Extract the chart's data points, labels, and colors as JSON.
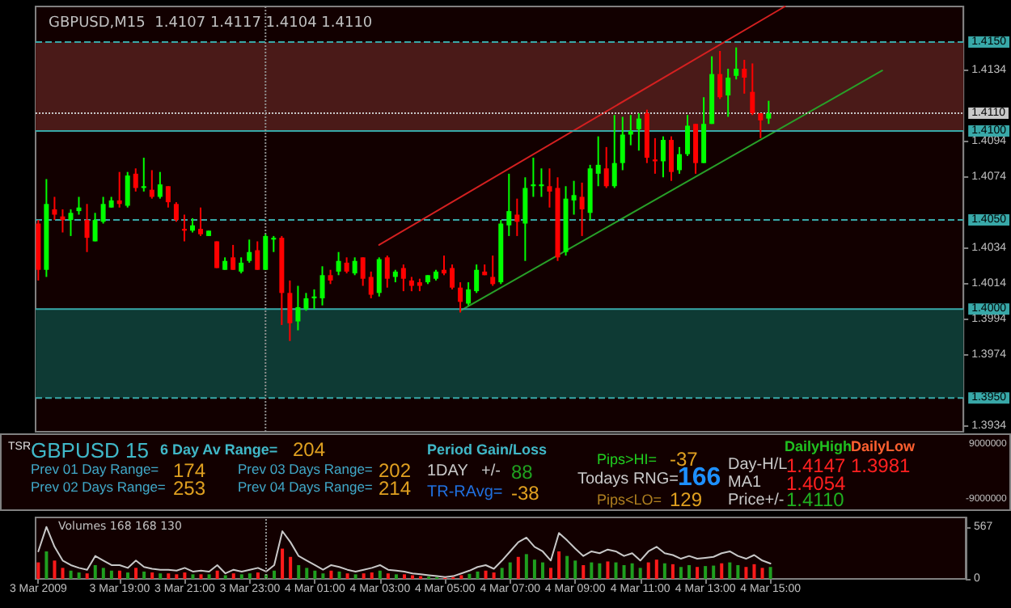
{
  "chart_data": [
    {
      "type": "candlestick",
      "title": "GBPUSD,M15  1.4107 1.4117 1.4104 1.4110",
      "tick_labels": "y",
      "x": [
        "2009-03-03T16:30",
        "2009-03-03T16:45",
        "2009-03-03T17:00",
        "2009-03-03T17:15",
        "2009-03-03T17:30",
        "2009-03-03T17:45",
        "2009-03-03T18:00",
        "2009-03-03T18:15",
        "2009-03-03T18:30",
        "2009-03-03T18:45",
        "2009-03-03T19:00",
        "2009-03-03T19:15",
        "2009-03-03T19:30",
        "2009-03-03T19:45",
        "2009-03-03T20:00",
        "2009-03-03T20:15",
        "2009-03-03T20:30",
        "2009-03-03T20:45",
        "2009-03-03T21:00",
        "2009-03-03T21:15",
        "2009-03-03T21:30",
        "2009-03-03T21:45",
        "2009-03-03T22:00",
        "2009-03-03T22:15",
        "2009-03-03T22:30",
        "2009-03-03T22:45",
        "2009-03-03T23:00",
        "2009-03-03T23:15",
        "2009-03-03T23:30",
        "2009-03-03T23:45",
        "2009-03-04T00:00",
        "2009-03-04T00:15",
        "2009-03-04T00:30",
        "2009-03-04T00:45",
        "2009-03-04T01:00",
        "2009-03-04T01:15",
        "2009-03-04T01:30",
        "2009-03-04T01:45",
        "2009-03-04T02:00",
        "2009-03-04T02:15",
        "2009-03-04T02:30",
        "2009-03-04T02:45",
        "2009-03-04T03:00",
        "2009-03-04T03:15",
        "2009-03-04T03:30",
        "2009-03-04T03:45",
        "2009-03-04T04:00",
        "2009-03-04T04:15",
        "2009-03-04T04:30",
        "2009-03-04T04:45",
        "2009-03-04T05:00",
        "2009-03-04T05:15",
        "2009-03-04T05:30",
        "2009-03-04T05:45",
        "2009-03-04T06:00",
        "2009-03-04T06:15",
        "2009-03-04T06:30",
        "2009-03-04T06:45",
        "2009-03-04T07:00",
        "2009-03-04T07:15",
        "2009-03-04T07:30",
        "2009-03-04T07:45",
        "2009-03-04T08:00",
        "2009-03-04T08:15",
        "2009-03-04T08:30",
        "2009-03-04T08:45",
        "2009-03-04T09:00",
        "2009-03-04T09:15",
        "2009-03-04T09:30",
        "2009-03-04T09:45",
        "2009-03-04T10:00",
        "2009-03-04T10:15",
        "2009-03-04T10:30",
        "2009-03-04T10:45",
        "2009-03-04T11:00",
        "2009-03-04T11:15",
        "2009-03-04T11:30",
        "2009-03-04T11:45",
        "2009-03-04T12:00",
        "2009-03-04T12:15",
        "2009-03-04T12:30",
        "2009-03-04T12:45",
        "2009-03-04T13:00",
        "2009-03-04T13:15",
        "2009-03-04T13:30",
        "2009-03-04T13:45",
        "2009-03-04T14:00",
        "2009-03-04T14:15",
        "2009-03-04T14:30",
        "2009-03-04T14:45",
        "2009-03-04T15:00"
      ],
      "ohlc": [
        [
          1.4048,
          1.405,
          1.4016,
          1.4022
        ],
        [
          1.4022,
          1.4073,
          1.4018,
          1.4059
        ],
        [
          1.4056,
          1.4063,
          1.405,
          1.4053
        ],
        [
          1.4052,
          1.4056,
          1.4043,
          1.405
        ],
        [
          1.405,
          1.4056,
          1.4041,
          1.4054
        ],
        [
          1.4055,
          1.4063,
          1.4053,
          1.4057
        ],
        [
          1.405,
          1.4059,
          1.4032,
          1.404
        ],
        [
          1.4038,
          1.4054,
          1.4038,
          1.405
        ],
        [
          1.4049,
          1.4063,
          1.4048,
          1.4059
        ],
        [
          1.4057,
          1.4063,
          1.4057,
          1.4061
        ],
        [
          1.4061,
          1.4077,
          1.4057,
          1.4059
        ],
        [
          1.4058,
          1.4077,
          1.4057,
          1.4075
        ],
        [
          1.4076,
          1.4079,
          1.4066,
          1.4068
        ],
        [
          1.4068,
          1.4085,
          1.4066,
          1.4069
        ],
        [
          1.4067,
          1.4078,
          1.4062,
          1.4063
        ],
        [
          1.4063,
          1.4077,
          1.4062,
          1.407
        ],
        [
          1.4069,
          1.4069,
          1.4057,
          1.406
        ],
        [
          1.4059,
          1.406,
          1.4049,
          1.405
        ],
        [
          1.4045,
          1.4053,
          1.4038,
          1.4044
        ],
        [
          1.4044,
          1.4051,
          1.4043,
          1.4047
        ],
        [
          1.4045,
          1.4057,
          1.4041,
          1.4042
        ],
        [
          1.4041,
          1.4044,
          1.4041,
          1.4044
        ],
        [
          1.4038,
          1.4038,
          1.4023,
          1.4023
        ],
        [
          1.4022,
          1.4029,
          1.4022,
          1.4027
        ],
        [
          1.4029,
          1.4036,
          1.4022,
          1.4022
        ],
        [
          1.4021,
          1.4029,
          1.402,
          1.4026
        ],
        [
          1.4027,
          1.4039,
          1.4026,
          1.4032
        ],
        [
          1.4033,
          1.4038,
          1.4022,
          1.4022
        ],
        [
          1.4022,
          1.4042,
          1.4022,
          1.4041
        ],
        [
          1.4039,
          1.4041,
          1.4032,
          1.404
        ],
        [
          1.404,
          1.4041,
          1.3991,
          1.4009
        ],
        [
          1.4009,
          1.4016,
          1.3982,
          1.3992
        ],
        [
          1.3993,
          1.4013,
          1.3988,
          1.4001
        ],
        [
          1.4,
          1.4009,
          1.3999,
          1.4006
        ],
        [
          1.4006,
          1.4011,
          1.4,
          1.4007
        ],
        [
          1.4006,
          1.4024,
          1.4002,
          1.4019
        ],
        [
          1.4019,
          1.4022,
          1.4014,
          1.4016
        ],
        [
          1.4021,
          1.4032,
          1.4019,
          1.4027
        ],
        [
          1.4026,
          1.4029,
          1.402,
          1.4021
        ],
        [
          1.402,
          1.4029,
          1.4019,
          1.4027
        ],
        [
          1.4029,
          1.4029,
          1.4013,
          1.4017
        ],
        [
          1.4018,
          1.4021,
          1.4006,
          1.4008
        ],
        [
          1.4009,
          1.4029,
          1.4007,
          1.4028
        ],
        [
          1.4029,
          1.403,
          1.4012,
          1.4017
        ],
        [
          1.4018,
          1.4022,
          1.4015,
          1.4021
        ],
        [
          1.4023,
          1.4025,
          1.401,
          1.4017
        ],
        [
          1.4016,
          1.4018,
          1.401,
          1.4013
        ],
        [
          1.4015,
          1.4017,
          1.401,
          1.4013
        ],
        [
          1.4015,
          1.4019,
          1.4014,
          1.4019
        ],
        [
          1.4017,
          1.4022,
          1.4016,
          1.4021
        ],
        [
          1.4022,
          1.403,
          1.4019,
          1.402
        ],
        [
          1.4023,
          1.4025,
          1.4011,
          1.4012
        ],
        [
          1.4012,
          1.4015,
          1.3998,
          1.4004
        ],
        [
          1.4003,
          1.4015,
          1.4002,
          1.4011
        ],
        [
          1.401,
          1.4025,
          1.4009,
          1.4022
        ],
        [
          1.4021,
          1.4025,
          1.4019,
          1.4019
        ],
        [
          1.4018,
          1.403,
          1.4013,
          1.4014
        ],
        [
          1.4015,
          1.405,
          1.4014,
          1.4048
        ],
        [
          1.4047,
          1.4076,
          1.4041,
          1.4055
        ],
        [
          1.4053,
          1.4062,
          1.4041,
          1.4049
        ],
        [
          1.4048,
          1.4074,
          1.4027,
          1.4068
        ],
        [
          1.4069,
          1.4085,
          1.4063,
          1.407
        ],
        [
          1.4069,
          1.4079,
          1.4063,
          1.407
        ],
        [
          1.4069,
          1.4079,
          1.4057,
          1.4066
        ],
        [
          1.4068,
          1.4074,
          1.4027,
          1.4029
        ],
        [
          1.4032,
          1.4069,
          1.403,
          1.4062
        ],
        [
          1.4061,
          1.4072,
          1.4053,
          1.4064
        ],
        [
          1.4063,
          1.4071,
          1.4041,
          1.4056
        ],
        [
          1.4054,
          1.4081,
          1.405,
          1.4079
        ],
        [
          1.4076,
          1.4097,
          1.4069,
          1.4081
        ],
        [
          1.4079,
          1.4091,
          1.4068,
          1.4069
        ],
        [
          1.4069,
          1.4109,
          1.4068,
          1.4082
        ],
        [
          1.4082,
          1.4108,
          1.4078,
          1.4098
        ],
        [
          1.4098,
          1.4109,
          1.4092,
          1.41
        ],
        [
          1.4101,
          1.411,
          1.4089,
          1.4107
        ],
        [
          1.411,
          1.4112,
          1.4082,
          1.4085
        ],
        [
          1.4084,
          1.4096,
          1.4076,
          1.4083
        ],
        [
          1.4083,
          1.4097,
          1.4074,
          1.4095
        ],
        [
          1.4095,
          1.4097,
          1.4072,
          1.4077
        ],
        [
          1.4078,
          1.4091,
          1.4076,
          1.4087
        ],
        [
          1.4087,
          1.4109,
          1.4086,
          1.4103
        ],
        [
          1.4104,
          1.4104,
          1.4076,
          1.4082
        ],
        [
          1.4082,
          1.4119,
          1.4082,
          1.4104
        ],
        [
          1.4104,
          1.4142,
          1.4104,
          1.4132
        ],
        [
          1.4132,
          1.4145,
          1.4118,
          1.4119
        ],
        [
          1.412,
          1.4135,
          1.4108,
          1.413
        ],
        [
          1.4131,
          1.4147,
          1.4129,
          1.4135
        ],
        [
          1.4135,
          1.414,
          1.4121,
          1.413
        ],
        [
          1.4122,
          1.4138,
          1.4109,
          1.411
        ],
        [
          1.411,
          1.411,
          1.4096,
          1.4106
        ],
        [
          1.4107,
          1.4117,
          1.4104,
          1.411
        ]
      ],
      "colors": [
        "#ff0000",
        "#00ff00",
        "#ff0000",
        "#ff0000",
        "#00ff00",
        "#00ff00",
        "#ff0000",
        "#00ff00",
        "#00ff00",
        "#00ff00",
        "#ff0000",
        "#00ff00",
        "#ff0000",
        "#00ff00",
        "#ff0000",
        "#00ff00",
        "#ff0000",
        "#ff0000",
        "#ff0000",
        "#00ff00",
        "#ff0000",
        "#00ff00",
        "#ff0000",
        "#00ff00",
        "#ff0000",
        "#00ff00",
        "#00ff00",
        "#ff0000",
        "#00ff00",
        "#00ff00",
        "#ff0000",
        "#ff0000",
        "#00ff00",
        "#00ff00",
        "#00ff00",
        "#00ff00",
        "#ff0000",
        "#00ff00",
        "#ff0000",
        "#00ff00",
        "#ff0000",
        "#ff0000",
        "#00ff00",
        "#ff0000",
        "#00ff00",
        "#ff0000",
        "#ff0000",
        "#ff0000",
        "#00ff00",
        "#00ff00",
        "#ff0000",
        "#ff0000",
        "#ff0000",
        "#00ff00",
        "#00ff00",
        "#ff0000",
        "#ff0000",
        "#00ff00",
        "#00ff00",
        "#ff0000",
        "#00ff00",
        "#00ff00",
        "#00ff00",
        "#ff0000",
        "#ff0000",
        "#00ff00",
        "#00ff00",
        "#ff0000",
        "#00ff00",
        "#00ff00",
        "#ff0000",
        "#00ff00",
        "#00ff00",
        "#00ff00",
        "#00ff00",
        "#ff0000",
        "#ff0000",
        "#00ff00",
        "#ff0000",
        "#00ff00",
        "#00ff00",
        "#ff0000",
        "#00ff00",
        "#00ff00",
        "#ff0000",
        "#00ff00",
        "#00ff00",
        "#ff0000",
        "#ff0000",
        "#ff0000",
        "#00ff00"
      ],
      "series": [
        {
          "type": "line",
          "x": [
            "2009-03-04T03:00",
            "2009-03-04T15:30"
          ],
          "values": [
            1.4036,
            1.417
          ],
          "color": "#d42020"
        },
        {
          "type": "line",
          "x": [
            "2009-03-04T05:30",
            "2009-03-04T18:30"
          ],
          "values": [
            1.3999,
            1.4134
          ],
          "color": "#28a028"
        }
      ],
      "xlim": [
        "2009-03-03T16:25",
        "2009-03-04T21:00"
      ],
      "ylim": [
        1.3931,
        1.417
      ],
      "yticks": [
        1.3934,
        1.3974,
        1.3994,
        1.4014,
        1.4034,
        1.4074,
        1.4094,
        1.4134
      ],
      "bands": [
        {
          "axis": "y",
          "from": 1.41,
          "to": 1.415,
          "color": "#4a1a18"
        },
        {
          "axis": "y",
          "from": 1.395,
          "to": 1.4,
          "color": "#0e3a34"
        }
      ],
      "ref_lines": [
        {
          "axis": "y",
          "value": 1.415,
          "label": "1.4150",
          "color": "#38a8a8",
          "line_style": "dashed"
        },
        {
          "axis": "y",
          "value": 1.411,
          "label": "1.4110",
          "color": "#c8c8c8",
          "line_style": "dotted"
        },
        {
          "axis": "y",
          "value": 1.41,
          "label": "1.4100",
          "color": "#38a8a8",
          "line_style": "solid"
        },
        {
          "axis": "y",
          "value": 1.405,
          "label": "1.4050",
          "color": "#38a8a8",
          "line_style": "dashed"
        },
        {
          "axis": "y",
          "value": 1.4,
          "label": "1.4000",
          "color": "#38a8a8",
          "line_style": "solid"
        },
        {
          "axis": "y",
          "value": 1.395,
          "label": "1.3950",
          "color": "#38a8a8",
          "line_style": "dashed"
        },
        {
          "axis": "x",
          "value": "2009-03-03T23:30",
          "color": "#909090",
          "line_style": "dotted"
        }
      ]
    },
    {
      "type": "other",
      "annotations": [
        "TSR",
        "GBPUSD 15",
        "6 Day Av Range=",
        "204",
        "Prev 01 Day Range=",
        "174",
        "Prev 02 Days Range=",
        "253",
        "Prev 03 Days Range=",
        "202",
        "Prev 04 Days Range=",
        "214",
        "Period Gain/Loss",
        "1DAY   +/-",
        "88",
        "TR-RAvg=",
        "-38",
        "Pips>HI=",
        "-37",
        "Todays RNG=",
        "166",
        "Pips<LO=",
        "129",
        "Day-H/L",
        "1.4147",
        "1.3981",
        "MA1",
        "1.4054",
        "Price+/-",
        "1.4110",
        "DailyHigh",
        "DailyLow",
        "9000000",
        "-9000000"
      ]
    },
    {
      "type": "bar",
      "title": "Volumes 168 168 130",
      "x": [
        "2009-03-03T16:30",
        "2009-03-03T16:45",
        "2009-03-03T17:00",
        "2009-03-03T17:15",
        "2009-03-03T17:30",
        "2009-03-03T17:45",
        "2009-03-03T18:00",
        "2009-03-03T18:15",
        "2009-03-03T18:30",
        "2009-03-03T18:45",
        "2009-03-03T19:00",
        "2009-03-03T19:15",
        "2009-03-03T19:30",
        "2009-03-03T19:45",
        "2009-03-03T20:00",
        "2009-03-03T20:15",
        "2009-03-03T20:30",
        "2009-03-03T20:45",
        "2009-03-03T21:00",
        "2009-03-03T21:15",
        "2009-03-03T21:30",
        "2009-03-03T21:45",
        "2009-03-03T22:00",
        "2009-03-03T22:15",
        "2009-03-03T22:30",
        "2009-03-03T22:45",
        "2009-03-03T23:00",
        "2009-03-03T23:15",
        "2009-03-03T23:30",
        "2009-03-03T23:45",
        "2009-03-04T00:00",
        "2009-03-04T00:15",
        "2009-03-04T00:30",
        "2009-03-04T00:45",
        "2009-03-04T01:00",
        "2009-03-04T01:15",
        "2009-03-04T01:30",
        "2009-03-04T01:45",
        "2009-03-04T02:00",
        "2009-03-04T02:15",
        "2009-03-04T02:30",
        "2009-03-04T02:45",
        "2009-03-04T03:00",
        "2009-03-04T03:15",
        "2009-03-04T03:30",
        "2009-03-04T03:45",
        "2009-03-04T04:00",
        "2009-03-04T04:15",
        "2009-03-04T04:30",
        "2009-03-04T04:45",
        "2009-03-04T05:00",
        "2009-03-04T05:15",
        "2009-03-04T05:30",
        "2009-03-04T05:45",
        "2009-03-04T06:00",
        "2009-03-04T06:15",
        "2009-03-04T06:30",
        "2009-03-04T06:45",
        "2009-03-04T07:00",
        "2009-03-04T07:15",
        "2009-03-04T07:30",
        "2009-03-04T07:45",
        "2009-03-04T08:00",
        "2009-03-04T08:15",
        "2009-03-04T08:30",
        "2009-03-04T08:45",
        "2009-03-04T09:00",
        "2009-03-04T09:15",
        "2009-03-04T09:30",
        "2009-03-04T09:45",
        "2009-03-04T10:00",
        "2009-03-04T10:15",
        "2009-03-04T10:30",
        "2009-03-04T10:45",
        "2009-03-04T11:00",
        "2009-03-04T11:15",
        "2009-03-04T11:30",
        "2009-03-04T11:45",
        "2009-03-04T12:00",
        "2009-03-04T12:15",
        "2009-03-04T12:30",
        "2009-03-04T12:45",
        "2009-03-04T13:00",
        "2009-03-04T13:15",
        "2009-03-04T13:30",
        "2009-03-04T13:45",
        "2009-03-04T14:00",
        "2009-03-04T14:15",
        "2009-03-04T14:30",
        "2009-03-04T14:45",
        "2009-03-04T15:00"
      ],
      "series": [
        {
          "values": [
            180,
            300,
            200,
            120,
            90,
            70,
            60,
            150,
            120,
            90,
            90,
            70,
            120,
            80,
            70,
            60,
            60,
            50,
            70,
            50,
            50,
            50,
            90,
            40,
            60,
            50,
            60,
            70,
            50,
            90,
            330,
            240,
            150,
            120,
            90,
            60,
            90,
            80,
            60,
            50,
            60,
            70,
            90,
            60,
            50,
            50,
            40,
            30,
            25,
            20,
            15,
            20,
            40,
            55,
            80,
            90,
            70,
            120,
            180,
            240,
            270,
            210,
            180,
            120,
            300,
            250,
            200,
            150,
            180,
            170,
            190,
            180,
            150,
            170,
            120,
            180,
            210,
            170,
            160,
            130,
            150,
            130,
            140,
            145,
            170,
            180,
            150,
            130,
            160,
            120,
            130
          ],
          "colors": [
            "#ff1a1a",
            "#1f9f1f",
            "#ff1a1a",
            "#ff1a1a",
            "#1f9f1f",
            "#1f9f1f",
            "#ff1a1a",
            "#1f9f1f",
            "#1f9f1f",
            "#1f9f1f",
            "#ff1a1a",
            "#1f9f1f",
            "#ff1a1a",
            "#1f9f1f",
            "#ff1a1a",
            "#1f9f1f",
            "#ff1a1a",
            "#ff1a1a",
            "#ff1a1a",
            "#1f9f1f",
            "#ff1a1a",
            "#1f9f1f",
            "#ff1a1a",
            "#1f9f1f",
            "#ff1a1a",
            "#1f9f1f",
            "#1f9f1f",
            "#ff1a1a",
            "#1f9f1f",
            "#1f9f1f",
            "#ff1a1a",
            "#ff1a1a",
            "#1f9f1f",
            "#1f9f1f",
            "#1f9f1f",
            "#1f9f1f",
            "#ff1a1a",
            "#1f9f1f",
            "#ff1a1a",
            "#1f9f1f",
            "#ff1a1a",
            "#ff1a1a",
            "#1f9f1f",
            "#ff1a1a",
            "#1f9f1f",
            "#ff1a1a",
            "#ff1a1a",
            "#ff1a1a",
            "#1f9f1f",
            "#1f9f1f",
            "#ff1a1a",
            "#ff1a1a",
            "#ff1a1a",
            "#1f9f1f",
            "#1f9f1f",
            "#ff1a1a",
            "#ff1a1a",
            "#1f9f1f",
            "#1f9f1f",
            "#ff1a1a",
            "#1f9f1f",
            "#1f9f1f",
            "#1f9f1f",
            "#ff1a1a",
            "#ff1a1a",
            "#1f9f1f",
            "#1f9f1f",
            "#ff1a1a",
            "#1f9f1f",
            "#1f9f1f",
            "#ff1a1a",
            "#1f9f1f",
            "#1f9f1f",
            "#1f9f1f",
            "#1f9f1f",
            "#ff1a1a",
            "#ff1a1a",
            "#1f9f1f",
            "#ff1a1a",
            "#1f9f1f",
            "#1f9f1f",
            "#ff1a1a",
            "#1f9f1f",
            "#1f9f1f",
            "#ff1a1a",
            "#1f9f1f",
            "#1f9f1f",
            "#ff1a1a",
            "#ff1a1a",
            "#ff1a1a",
            "#1f9f1f"
          ]
        },
        {
          "type": "line",
          "color": "#c8c8c8",
          "values": [
            300,
            567,
            350,
            200,
            150,
            120,
            100,
            250,
            200,
            150,
            150,
            120,
            200,
            130,
            110,
            100,
            100,
            90,
            120,
            80,
            90,
            80,
            150,
            60,
            100,
            80,
            100,
            120,
            80,
            150,
            520,
            400,
            250,
            200,
            150,
            100,
            150,
            130,
            100,
            80,
            100,
            120,
            150,
            100,
            90,
            80,
            60,
            50,
            40,
            30,
            20,
            30,
            60,
            90,
            130,
            150,
            110,
            200,
            300,
            400,
            450,
            350,
            300,
            200,
            500,
            420,
            330,
            250,
            300,
            280,
            320,
            300,
            250,
            280,
            200,
            300,
            350,
            280,
            260,
            220,
            250,
            220,
            230,
            240,
            280,
            300,
            250,
            220,
            260,
            200,
            168
          ]
        }
      ],
      "xlim": [
        "2009-03-03T16:25",
        "2009-03-04T21:00"
      ],
      "xticks": [
        {
          "value": "2009-03-03T16:30",
          "label": "3 Mar 2009"
        },
        {
          "value": "2009-03-03T19:00",
          "label": "3 Mar 19:00"
        },
        {
          "value": "2009-03-03T21:00",
          "label": "3 Mar 21:00"
        },
        {
          "value": "2009-03-03T23:00",
          "label": "3 Mar 23:00"
        },
        {
          "value": "2009-03-04T01:00",
          "label": "4 Mar 01:00"
        },
        {
          "value": "2009-03-04T03:00",
          "label": "4 Mar 03:00"
        },
        {
          "value": "2009-03-04T05:00",
          "label": "4 Mar 05:00"
        },
        {
          "value": "2009-03-04T07:00",
          "label": "4 Mar 07:00"
        },
        {
          "value": "2009-03-04T09:00",
          "label": "4 Mar 09:00"
        },
        {
          "value": "2009-03-04T11:00",
          "label": "4 Mar 11:00"
        },
        {
          "value": "2009-03-04T13:00",
          "label": "4 Mar 13:00"
        },
        {
          "value": "2009-03-04T15:00",
          "label": "4 Mar 15:00"
        }
      ],
      "ylim": [
        0,
        670
      ],
      "yticks": [
        0,
        567
      ],
      "ref_lines": [
        {
          "axis": "x",
          "value": "2009-03-03T23:30",
          "color": "#909090",
          "line_style": "dotted"
        }
      ]
    }
  ]
}
